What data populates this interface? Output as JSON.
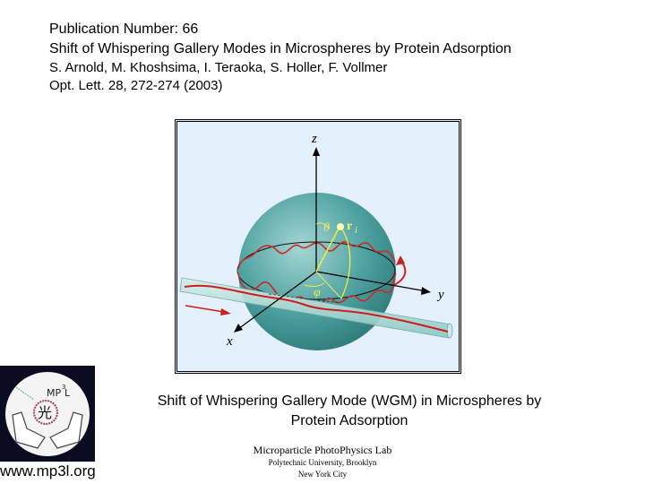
{
  "header": {
    "publication_number": "Publication Number: 66",
    "title": "Shift of Whispering Gallery Modes in Microspheres by Protein Adsorption",
    "authors": "S. Arnold, M. Khoshsima, I. Teraoka, S. Holler, F. Vollmer",
    "citation": "Opt. Lett. 28, 272-274 (2003)"
  },
  "figure": {
    "axis_z": "z",
    "axis_y": "y",
    "axis_x": "x",
    "theta": "θ",
    "phi": "φ",
    "r_label": "r",
    "r_sub": "i"
  },
  "caption": {
    "line1": "Shift of Whispering Gallery Mode (WGM) in Microspheres by",
    "line2": "Protein Adsorption"
  },
  "lab": {
    "name": "Microparticle PhotoPhysics Lab",
    "university": "Polytechnic University, Brooklyn",
    "city": "New York City"
  },
  "logo": {
    "text": "MP3L",
    "glyph": "光",
    "url": "www.mp3l.org"
  },
  "colors": {
    "sphere": "#3f9a98",
    "wave": "#cc1f1f",
    "vector": "#f2ee3a",
    "background": "#e4f0fb"
  }
}
